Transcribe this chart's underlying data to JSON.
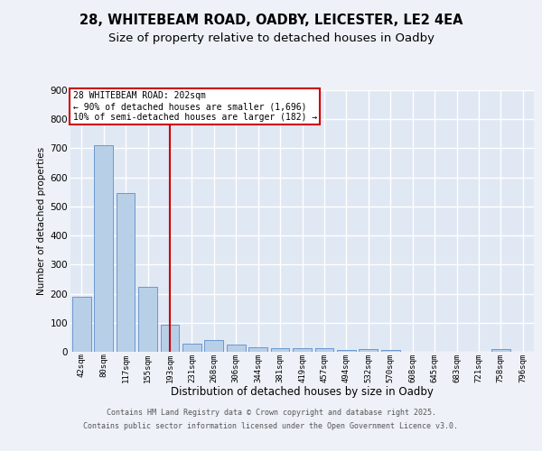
{
  "title_line1": "28, WHITEBEAM ROAD, OADBY, LEICESTER, LE2 4EA",
  "title_line2": "Size of property relative to detached houses in Oadby",
  "xlabel": "Distribution of detached houses by size in Oadby",
  "ylabel": "Number of detached properties",
  "categories": [
    "42sqm",
    "80sqm",
    "117sqm",
    "155sqm",
    "193sqm",
    "231sqm",
    "268sqm",
    "306sqm",
    "344sqm",
    "381sqm",
    "419sqm",
    "457sqm",
    "494sqm",
    "532sqm",
    "570sqm",
    "608sqm",
    "645sqm",
    "683sqm",
    "721sqm",
    "758sqm",
    "796sqm"
  ],
  "values": [
    189,
    712,
    545,
    223,
    93,
    28,
    40,
    25,
    14,
    12,
    12,
    12,
    7,
    9,
    5,
    0,
    0,
    0,
    0,
    8,
    0
  ],
  "bar_color": "#b8cfe8",
  "bar_edgecolor": "#5b8dc8",
  "marker_index": 4,
  "marker_color": "#cc0000",
  "annotation_title": "28 WHITEBEAM ROAD: 202sqm",
  "annotation_line2": "← 90% of detached houses are smaller (1,696)",
  "annotation_line3": "10% of semi-detached houses are larger (182) →",
  "annotation_box_edgecolor": "#cc0000",
  "annotation_box_facecolor": "#ffffff",
  "ylim": [
    0,
    900
  ],
  "yticks": [
    0,
    100,
    200,
    300,
    400,
    500,
    600,
    700,
    800,
    900
  ],
  "fig_background": "#eef2f8",
  "axes_background": "#e0e8f4",
  "footer_line1": "Contains HM Land Registry data © Crown copyright and database right 2025.",
  "footer_line2": "Contains public sector information licensed under the Open Government Licence v3.0.",
  "grid_color": "#ffffff",
  "title_fontsize": 10.5,
  "subtitle_fontsize": 9.5
}
